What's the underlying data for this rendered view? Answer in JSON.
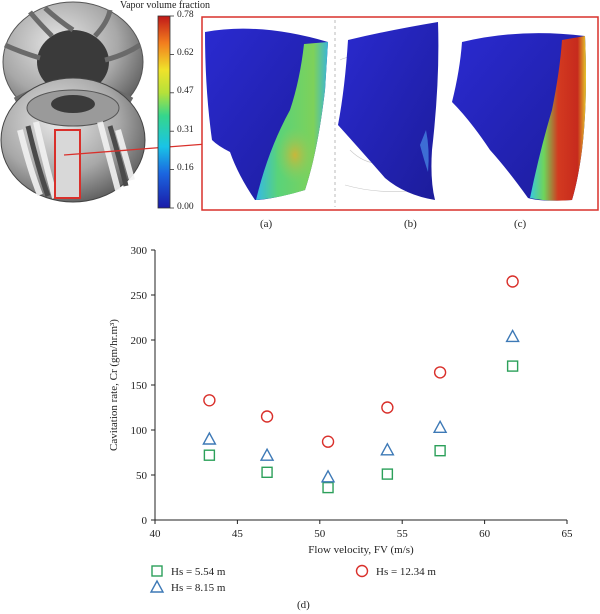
{
  "colorbar": {
    "title": "Vapor volume fraction",
    "ticks": [
      "0.78",
      "0.62",
      "0.47",
      "0.31",
      "0.16",
      "0.00"
    ]
  },
  "panels": {
    "a": "(a)",
    "b": "(b)",
    "c": "(c)",
    "d": "(d)"
  },
  "colors": {
    "hs1": "#2ca05a",
    "hs2": "#3d79b6",
    "hs3": "#d9302b",
    "frame": "#d9302b"
  },
  "chart_data": {
    "type": "scatter",
    "xlabel": "Flow velocity, FV (m/s)",
    "ylabel": "Cavitation rate, Cr (gm/hr.m³)",
    "xlim": [
      40,
      65
    ],
    "ylim": [
      0,
      300
    ],
    "xticks": [
      "40",
      "45",
      "50",
      "55",
      "60",
      "65"
    ],
    "yticks": [
      "0",
      "50",
      "100",
      "150",
      "200",
      "250",
      "300"
    ],
    "grid": false,
    "legend_position": "bottom",
    "series": [
      {
        "name": "Hs = 5.54 m",
        "marker": "square",
        "x": [
          43.3,
          46.8,
          50.5,
          54.1,
          57.3,
          61.7
        ],
        "y": [
          72,
          53,
          36,
          51,
          77,
          171
        ]
      },
      {
        "name": "Hs = 8.15 m",
        "marker": "triangle",
        "x": [
          43.3,
          46.8,
          50.5,
          54.1,
          57.3,
          61.7
        ],
        "y": [
          90,
          72,
          48,
          78,
          103,
          204
        ]
      },
      {
        "name": "Hs = 12.34 m",
        "marker": "circle",
        "x": [
          43.3,
          46.8,
          50.5,
          54.1,
          57.3,
          61.7
        ],
        "y": [
          133,
          115,
          87,
          125,
          164,
          265
        ]
      }
    ]
  }
}
